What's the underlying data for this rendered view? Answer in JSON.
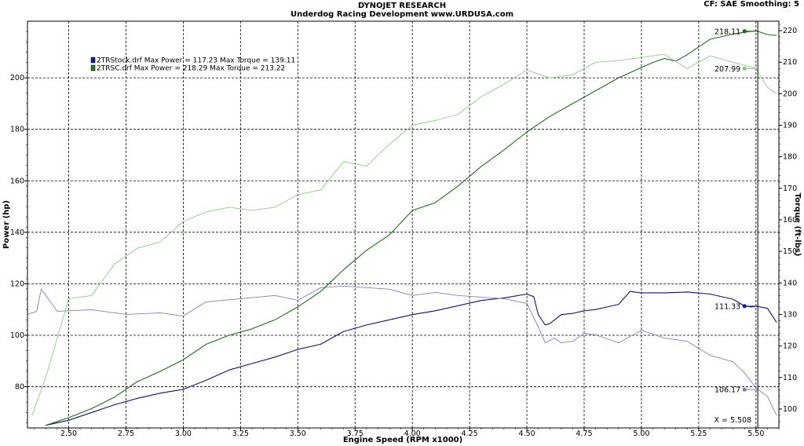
{
  "header": {
    "title": "DYNOJET RESEARCH",
    "subtitle": "Underdog Racing Development www.URDUSA.com",
    "settings": "CF: SAE  Smoothing: 5"
  },
  "chart_data": {
    "type": "line",
    "xlabel": "Engine Speed (RPM x1000)",
    "ylabel_left": "Power (hp)",
    "ylabel_right": "Torque (ft-lbs)",
    "xlim": [
      2.32,
      5.6
    ],
    "ylim_left": [
      64,
      222
    ],
    "ylim_right": [
      94,
      223
    ],
    "grid": true,
    "x_ticks": [
      "2.50",
      "2.75",
      "3.00",
      "3.25",
      "3.50",
      "3.75",
      "4.00",
      "4.25",
      "4.50",
      "4.75",
      "5.00",
      "5.25",
      "5.50"
    ],
    "y_ticks_left": [
      "80",
      "100",
      "120",
      "140",
      "160",
      "180",
      "200"
    ],
    "y_ticks_right": [
      "100",
      "110",
      "120",
      "130",
      "140",
      "150",
      "160",
      "170",
      "180",
      "190",
      "200",
      "210",
      "220"
    ],
    "legend": [
      {
        "text": "2TRStock.drf Max Power = 117.23     Max Torque = 139.11",
        "color": "#1a1aa0"
      },
      {
        "text": "2TRSC.drf Max Power = 218.29     Max Torque = 213.22",
        "color": "#2e7d1e"
      }
    ],
    "series": [
      {
        "name": "2TRStock.drf",
        "measure": "Power (hp)",
        "axis": "left",
        "color": "#10107a",
        "width": 1.1,
        "x": [
          2.4,
          2.5,
          2.6,
          2.7,
          2.8,
          2.9,
          3.0,
          3.1,
          3.2,
          3.3,
          3.4,
          3.5,
          3.6,
          3.7,
          3.8,
          3.9,
          4.0,
          4.1,
          4.2,
          4.3,
          4.4,
          4.5,
          4.53,
          4.55,
          4.58,
          4.6,
          4.65,
          4.7,
          4.75,
          4.8,
          4.85,
          4.9,
          4.95,
          5.0,
          5.05,
          5.1,
          5.2,
          5.3,
          5.4,
          5.45,
          5.48,
          5.5,
          5.55,
          5.59
        ],
        "y": [
          65,
          67,
          70,
          73,
          75.5,
          77.5,
          79,
          82.5,
          86.5,
          89,
          91.5,
          94.5,
          96.5,
          101.5,
          104,
          106,
          108,
          109.5,
          111.5,
          113.5,
          114.5,
          116,
          115,
          108,
          104,
          104.5,
          108,
          108.5,
          109.5,
          110,
          111,
          112,
          117,
          116.5,
          116.5,
          116.5,
          116.8,
          116,
          114,
          111.4,
          111,
          111.3,
          110.5,
          105
        ]
      },
      {
        "name": "2TRStock.drf",
        "measure": "Torque (ft-lbs)",
        "axis": "right",
        "color": "#7b80c8",
        "width": 0.9,
        "x": [
          2.32,
          2.36,
          2.38,
          2.45,
          2.6,
          2.75,
          2.9,
          3.0,
          3.1,
          3.25,
          3.4,
          3.5,
          3.6,
          3.7,
          3.8,
          3.9,
          4.0,
          4.1,
          4.2,
          4.3,
          4.4,
          4.5,
          4.55,
          4.58,
          4.62,
          4.65,
          4.7,
          4.75,
          4.8,
          4.9,
          4.95,
          5.0,
          5.1,
          5.2,
          5.3,
          5.4,
          5.45,
          5.5,
          5.55,
          5.59
        ],
        "y": [
          130,
          131,
          138,
          131,
          131.5,
          130,
          130.5,
          129.5,
          134,
          135,
          136,
          134.5,
          138.5,
          139,
          138.5,
          138,
          136,
          137,
          136,
          135.5,
          135,
          133.5,
          126,
          121,
          122.5,
          121,
          121.5,
          124,
          123.5,
          121,
          123,
          125,
          122.5,
          121.5,
          117,
          115,
          111.5,
          106.7,
          104,
          98
        ]
      },
      {
        "name": "2TRSC.drf",
        "measure": "Power (hp)",
        "axis": "left",
        "color": "#1f6b1a",
        "width": 1.1,
        "x": [
          2.4,
          2.5,
          2.6,
          2.7,
          2.8,
          2.9,
          3.0,
          3.1,
          3.2,
          3.3,
          3.4,
          3.5,
          3.6,
          3.7,
          3.8,
          3.9,
          4.0,
          4.1,
          4.2,
          4.3,
          4.4,
          4.5,
          4.6,
          4.7,
          4.8,
          4.9,
          5.0,
          5.05,
          5.1,
          5.15,
          5.2,
          5.3,
          5.4,
          5.45,
          5.5,
          5.55,
          5.59
        ],
        "y": [
          65,
          68,
          71.5,
          76,
          82,
          86,
          90.5,
          96.5,
          100,
          102.5,
          106,
          111,
          117,
          125.5,
          133,
          139,
          148.5,
          151.5,
          158,
          165.5,
          172,
          179,
          185,
          190,
          195,
          200,
          204,
          206,
          207.5,
          206.5,
          209,
          215,
          217,
          217.7,
          218.3,
          216.8,
          216.5
        ]
      },
      {
        "name": "2TRSC.drf",
        "measure": "Torque (ft-lbs)",
        "axis": "right",
        "color": "#8fc887",
        "width": 0.9,
        "x": [
          2.34,
          2.4,
          2.5,
          2.6,
          2.7,
          2.8,
          2.9,
          3.0,
          3.1,
          3.2,
          3.3,
          3.4,
          3.5,
          3.6,
          3.7,
          3.8,
          3.9,
          4.0,
          4.1,
          4.2,
          4.3,
          4.4,
          4.5,
          4.6,
          4.7,
          4.8,
          4.9,
          5.0,
          5.1,
          5.2,
          5.3,
          5.4,
          5.45,
          5.5,
          5.55,
          5.59
        ],
        "y": [
          98,
          110,
          135,
          136,
          146,
          151,
          153,
          159.5,
          162.5,
          164,
          163,
          164,
          168,
          169.5,
          178.5,
          177,
          184,
          190,
          191.5,
          193.5,
          199,
          203,
          207.5,
          205,
          206,
          210,
          210.5,
          211.5,
          212.5,
          208,
          212,
          210,
          209,
          208,
          202,
          200
        ]
      }
    ],
    "annotations": [
      {
        "text": "218.11",
        "x": 5.45,
        "y": 218.11,
        "axis": "left",
        "color": "#1f6b1a"
      },
      {
        "text": "207.99",
        "x": 5.45,
        "y": 207.99,
        "axis": "right",
        "color": "#8fc887"
      },
      {
        "text": "111.33",
        "x": 5.45,
        "y": 111.33,
        "axis": "left",
        "color": "#1a1aa0"
      },
      {
        "text": "106.17",
        "x": 5.45,
        "y": 106.17,
        "axis": "right",
        "color": "#7b80c8"
      },
      {
        "text": "X = 5.508",
        "x": 5.508,
        "cursor": true
      }
    ]
  }
}
